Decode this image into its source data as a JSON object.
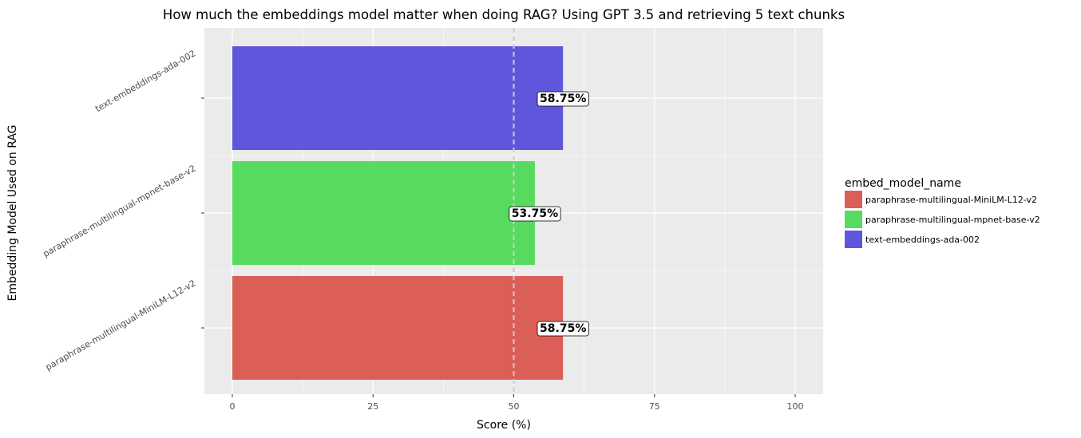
{
  "chart_data": {
    "type": "bar",
    "orientation": "horizontal",
    "title": "How much the embeddings model matter when doing RAG? Using GPT 3.5 and retrieving 5 text chunks",
    "xlabel": "Score (%)",
    "ylabel": "Embedding Model Used on RAG",
    "xlim": [
      0,
      100
    ],
    "xticks": [
      0,
      25,
      50,
      75,
      100
    ],
    "categories": [
      "paraphrase-multilingual-MiniLM-L12-v2",
      "paraphrase-multilingual-mpnet-base-v2",
      "text-embeddings-ada-002"
    ],
    "values": [
      58.75,
      53.75,
      58.75
    ],
    "value_labels": [
      "58.75%",
      "53.75%",
      "58.75%"
    ],
    "colors": [
      "#db5f57",
      "#57db5f",
      "#5f57db"
    ],
    "reference_line": {
      "x": 50,
      "style": "dashed",
      "color": "#cccccc"
    },
    "legend": {
      "title": "embed_model_name",
      "position": "right",
      "entries": [
        "paraphrase-multilingual-MiniLM-L12-v2",
        "paraphrase-multilingual-mpnet-base-v2",
        "text-embeddings-ada-002"
      ]
    },
    "grid": true,
    "panel_background": "#ebebeb"
  }
}
